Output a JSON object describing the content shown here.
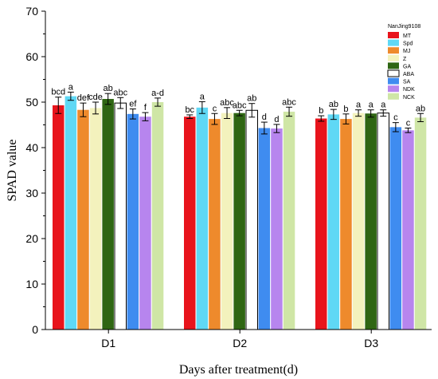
{
  "chart_data": {
    "type": "bar",
    "title": "",
    "xlabel": "Days after treatment(d)",
    "ylabel": "SPAD value",
    "ylim": [
      0,
      70
    ],
    "yticks": [
      0,
      10,
      20,
      30,
      40,
      50,
      60,
      70
    ],
    "categories": [
      "D1",
      "D2",
      "D3"
    ],
    "legend_title": "NanJing9108",
    "legend_position": "top-right",
    "grid": false,
    "series": [
      {
        "name": "MT",
        "color": "#e8141c",
        "values": [
          49.3,
          46.8,
          46.4
        ],
        "errors": [
          1.8,
          0.4,
          0.6
        ],
        "labels": [
          "bcd",
          "bc",
          "b"
        ]
      },
      {
        "name": "Spd",
        "color": "#5fd8f5",
        "values": [
          51.3,
          48.8,
          47.3
        ],
        "errors": [
          0.9,
          1.3,
          1.1
        ],
        "labels": [
          "a",
          "a",
          "ab"
        ]
      },
      {
        "name": "MJ",
        "color": "#ee8a2c",
        "values": [
          48.3,
          46.3,
          46.3
        ],
        "errors": [
          1.5,
          1.2,
          1.1
        ],
        "labels": [
          "def",
          "c",
          "b"
        ]
      },
      {
        "name": "Z",
        "color": "#f3f2bd",
        "values": [
          48.7,
          47.6,
          47.6
        ],
        "errors": [
          1.3,
          1.2,
          0.7
        ],
        "labels": [
          "cde",
          "abc",
          "a"
        ]
      },
      {
        "name": "GA",
        "color": "#2f6613",
        "values": [
          50.7,
          47.6,
          47.5
        ],
        "errors": [
          1.2,
          0.6,
          0.8
        ],
        "labels": [
          "ab",
          "abc",
          "a"
        ]
      },
      {
        "name": "ABA",
        "color": "#ffffff",
        "values": [
          49.8,
          48.2,
          47.6
        ],
        "errors": [
          1.2,
          1.5,
          0.7
        ],
        "labels": [
          "abc",
          "ab",
          "a"
        ]
      },
      {
        "name": "SA",
        "color": "#3f8cf0",
        "values": [
          47.4,
          44.3,
          44.5
        ],
        "errors": [
          1.1,
          1.3,
          1.0
        ],
        "labels": [
          "ef",
          "d",
          "c"
        ]
      },
      {
        "name": "NDK",
        "color": "#b785ee",
        "values": [
          46.8,
          44.2,
          43.8
        ],
        "errors": [
          0.9,
          0.9,
          0.5
        ],
        "labels": [
          "f",
          "d",
          "c"
        ]
      },
      {
        "name": "NCK",
        "color": "#cfe6a6",
        "values": [
          50.0,
          47.9,
          46.6
        ],
        "errors": [
          0.9,
          1.0,
          0.9
        ],
        "labels": [
          "a-d",
          "abc",
          "ab"
        ]
      }
    ]
  }
}
